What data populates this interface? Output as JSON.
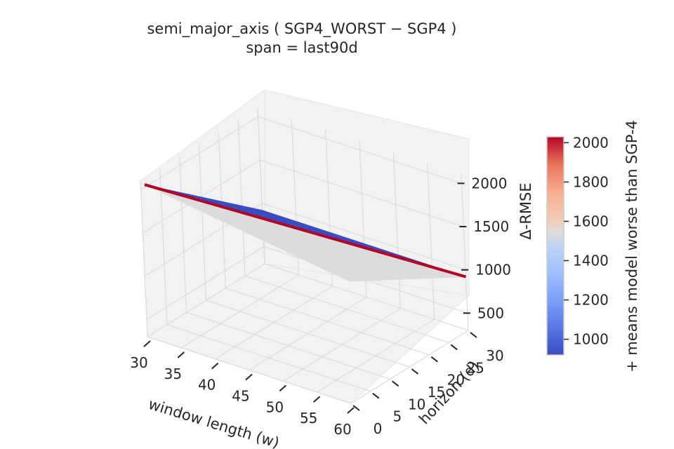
{
  "chart_data": {
    "type": "surface",
    "title": "semi_major_axis  ( SGP4_WORST − SGP4 )",
    "subtitle": "span = last90d",
    "xlabel": "window length (w)",
    "ylabel": "horizon (d)",
    "zlabel": "Δ-RMSE",
    "x_ticks": [
      30,
      35,
      40,
      45,
      50,
      55,
      60
    ],
    "y_ticks": [
      0,
      5,
      10,
      15,
      20,
      25,
      30
    ],
    "z_ticks": [
      500,
      1000,
      1500,
      2000
    ],
    "xlim": [
      30,
      60
    ],
    "ylim": [
      0,
      30
    ],
    "zlim": [
      300,
      2100
    ],
    "x": [
      30,
      60
    ],
    "y": [
      1,
      30
    ],
    "z": [
      [
        2030,
        920
      ],
      [
        1680,
        920
      ]
    ],
    "colormap": "coolwarm",
    "colorbar": {
      "label": "+ means model worse than SGP-4",
      "range": [
        920,
        2030
      ],
      "ticks": [
        1000,
        1200,
        1400,
        1600,
        1800,
        2000
      ],
      "low_color": "#3b4cc0",
      "mid_color": "#dddddd",
      "high_color": "#b40426"
    },
    "pane_color": "#f2f2f2",
    "grid": true
  }
}
